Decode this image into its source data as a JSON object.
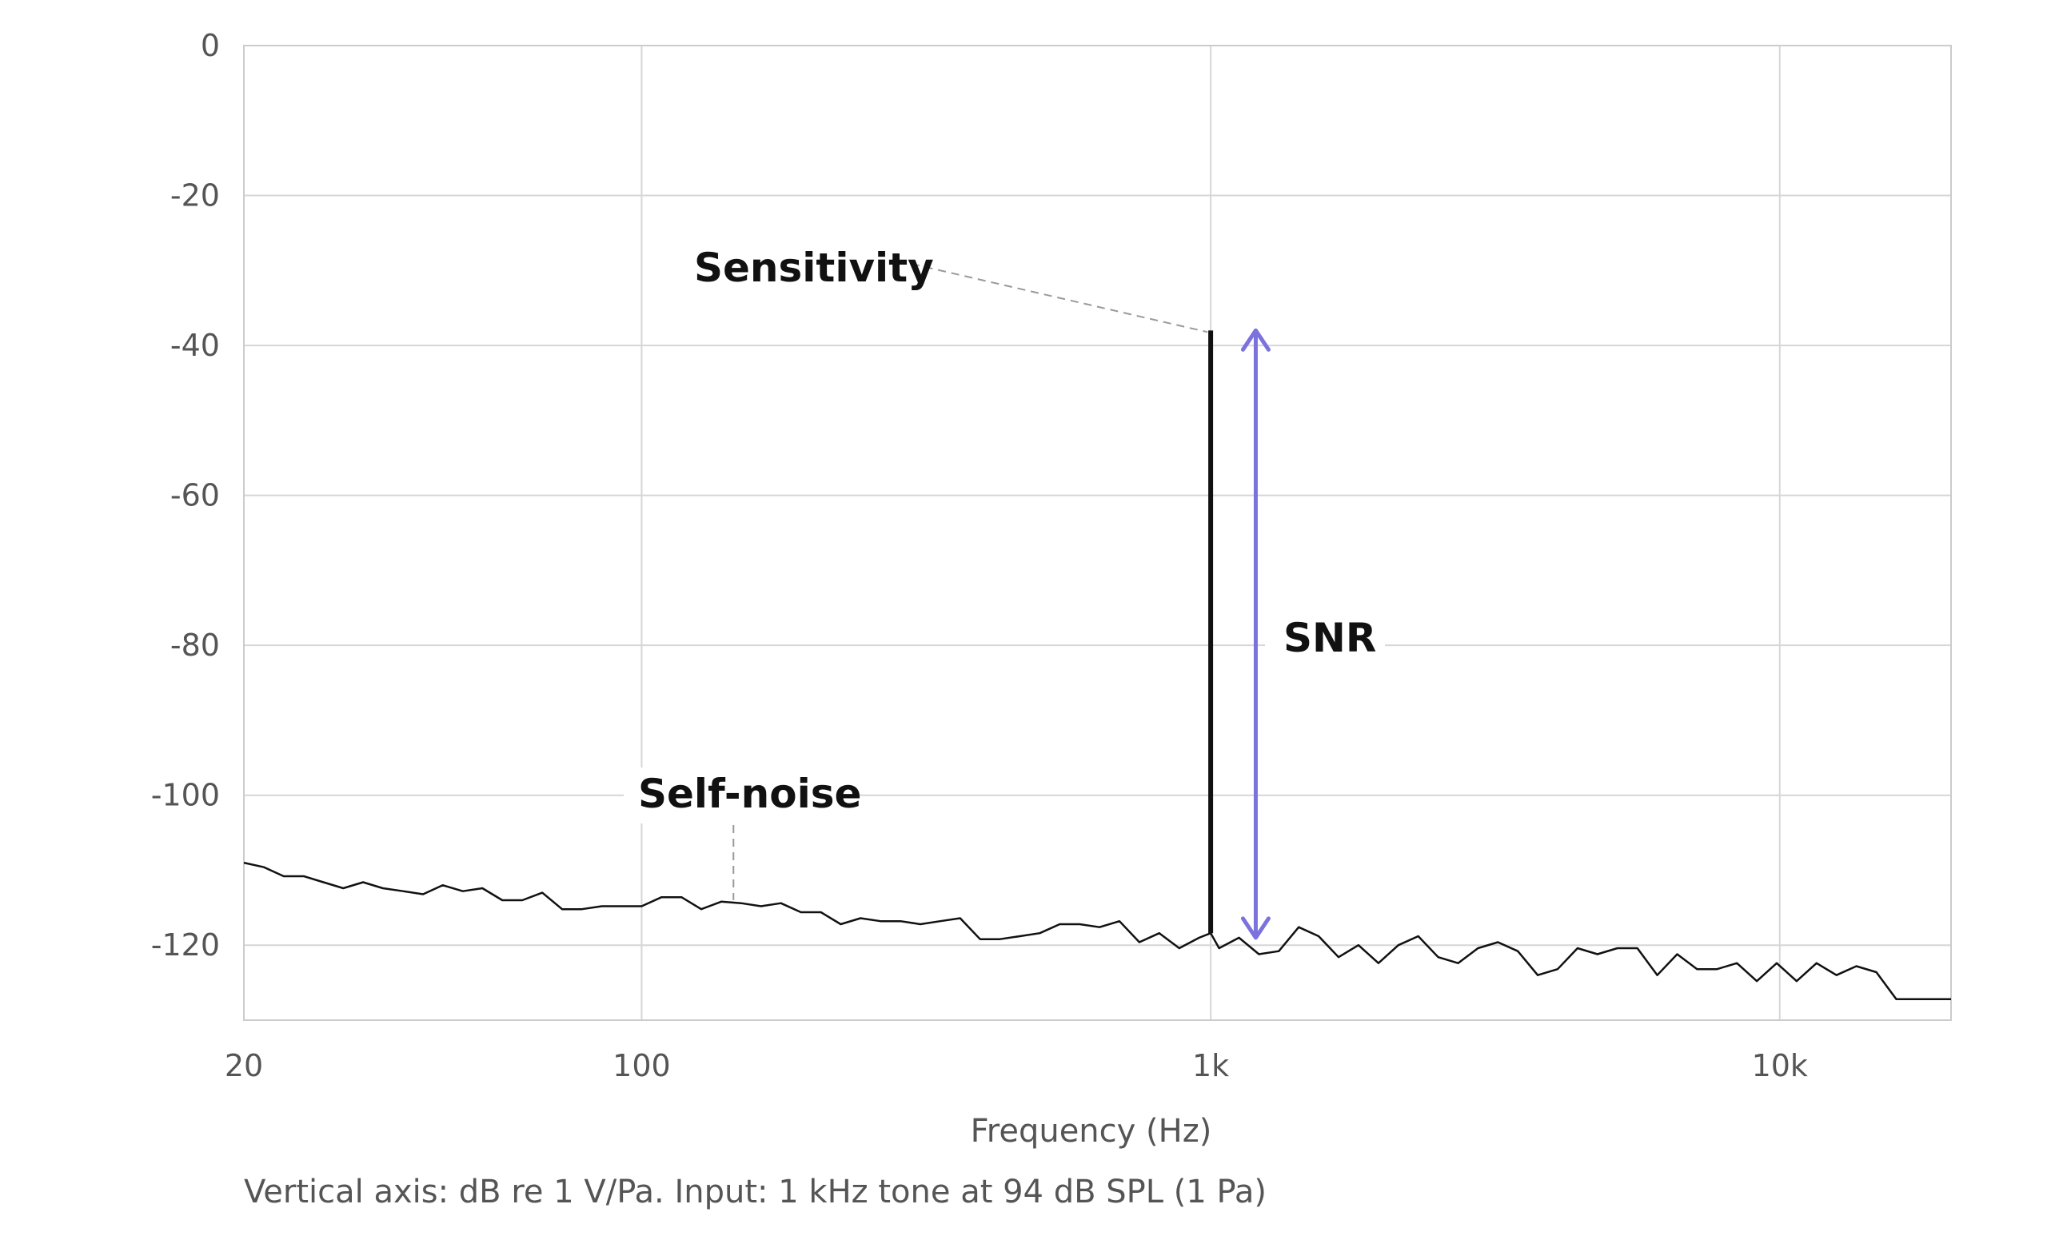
{
  "chart_data": {
    "type": "line",
    "xscale": "log",
    "xlim": [
      20,
      20000
    ],
    "ylim": [
      -130,
      0
    ],
    "grid": true,
    "xlabel": "Frequency (Hz)",
    "ylabel": "",
    "title": "",
    "note": "Vertical axis: dB re 1 V/Pa. Input: 1 kHz tone at 94 dB SPL (1 Pa)",
    "x_ticks": [
      {
        "value": 20,
        "label": "20"
      },
      {
        "value": 100,
        "label": "100"
      },
      {
        "value": 1000,
        "label": "1k"
      },
      {
        "value": 10000,
        "label": "10k"
      }
    ],
    "y_ticks": [
      {
        "value": 0,
        "label": "0"
      },
      {
        "value": -20,
        "label": "-20"
      },
      {
        "value": -40,
        "label": "-40"
      },
      {
        "value": -60,
        "label": "-60"
      },
      {
        "value": -80,
        "label": "-80"
      },
      {
        "value": -100,
        "label": "-100"
      },
      {
        "value": -120,
        "label": "-120"
      }
    ],
    "series": [
      {
        "color": "#111111",
        "x": [
          20,
          21.7,
          23.5,
          25.5,
          27.6,
          29.9,
          32.4,
          35.1,
          38.1,
          41.3,
          44.7,
          48.5,
          52.5,
          56.9,
          61.7,
          66.9,
          72.5,
          78.5,
          85.1,
          92.3,
          100,
          108.4,
          117.5,
          127.3,
          138,
          149.6,
          162.1,
          175.7,
          190.5,
          206.5,
          223.8,
          242.5,
          262.9,
          285,
          308.9,
          334.8,
          362.9,
          393.3,
          426.3,
          462.1,
          500.9,
          542.9,
          588.5,
          637.9,
          691.4,
          749.4,
          812.3,
          880.5,
          954.4,
          1000,
          1034.5,
          1121.3,
          1215.4,
          1317.4,
          1428,
          1547.8,
          1677.7,
          1818.5,
          1971.2,
          2136.6,
          2315.9,
          2510.3,
          2721,
          2949.3,
          3196.9,
          3465.2,
          3756,
          4071.2,
          4412.9,
          4783.3,
          5184.7,
          5619.9,
          6091.6,
          6602.8,
          7157,
          7757.6,
          8408.7,
          9114.4,
          9879.3,
          10708.5,
          11607.2,
          12581.4,
          13637.3,
          14781.9,
          16022.5,
          17367.2,
          18824.8,
          20000
        ],
        "values": [
          -109,
          -109.6,
          -110.8,
          -110.8,
          -111.6,
          -112.4,
          -111.6,
          -112.4,
          -112.8,
          -113.2,
          -112,
          -112.8,
          -112.4,
          -114,
          -114,
          -113,
          -115.2,
          -115.2,
          -114.8,
          -114.8,
          -114.8,
          -113.6,
          -113.6,
          -115.2,
          -114.2,
          -114.4,
          -114.8,
          -114.4,
          -115.6,
          -115.6,
          -117.2,
          -116.4,
          -116.8,
          -116.8,
          -117.2,
          -116.8,
          -116.4,
          -119.2,
          -119.2,
          -118.8,
          -118.4,
          -117.2,
          -117.2,
          -117.6,
          -116.8,
          -119.6,
          -118.4,
          -120.4,
          -119,
          -118.4,
          -120.4,
          -119,
          -121.2,
          -120.8,
          -117.6,
          -118.8,
          -121.6,
          -120,
          -122.4,
          -120,
          -118.8,
          -121.6,
          -122.4,
          -120.4,
          -119.6,
          -120.8,
          -124,
          -123.2,
          -120.4,
          -121.2,
          -120.4,
          -120.4,
          -124,
          -121.2,
          -123.2,
          -123.2,
          -122.4,
          -124.8,
          -122.4,
          -124.8,
          -122.4,
          -124,
          -122.8,
          -123.6,
          -127.2,
          -127.2,
          -127.2,
          -127.2
        ]
      }
    ],
    "impulse": {
      "x": 1000,
      "y": -38,
      "color": "#111111"
    },
    "snr_arrow": {
      "x": 1200,
      "y_top": -38,
      "y_bottom": -119,
      "color": "#7b72dd"
    },
    "annotations": [
      {
        "id": "sensitivity",
        "text": "Sensitivity",
        "pointer": {
          "x": 1000,
          "y": -38
        }
      },
      {
        "id": "self-noise",
        "text": "Self-noise",
        "pointer": {
          "x": 145,
          "y": -114.4
        }
      },
      {
        "id": "snr",
        "text": "SNR"
      }
    ]
  }
}
